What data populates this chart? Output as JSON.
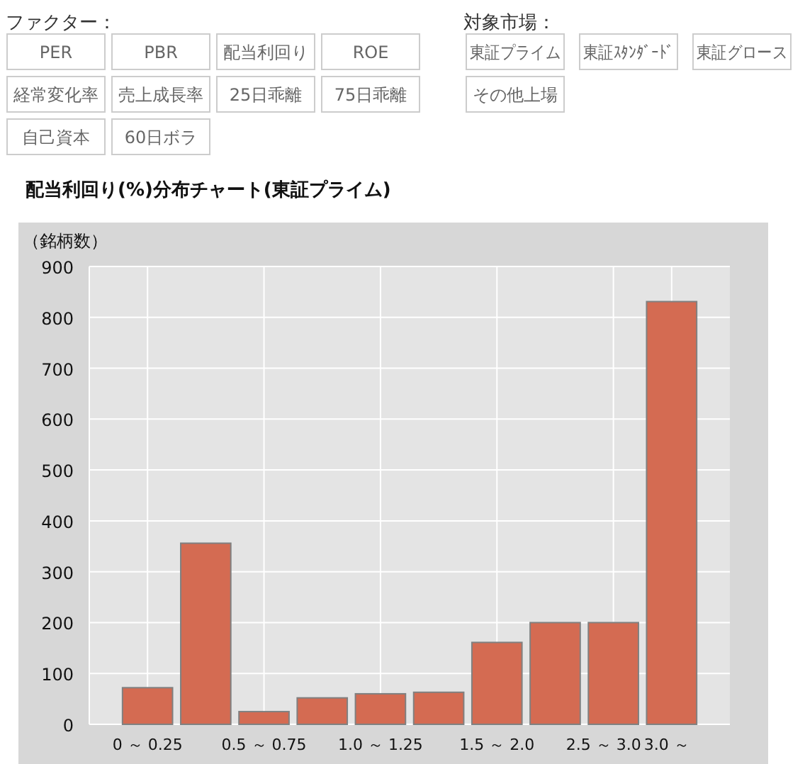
{
  "chart_data": {
    "type": "bar",
    "title": "配当利回り(%)分布チャート(東証プライム)",
    "ylabel": "（銘柄数）",
    "categories": [
      "0 ～ 0.25",
      null,
      "0.5 ～ 0.75",
      null,
      "1.0 ～ 1.25",
      null,
      "1.5 ～ 2.0",
      null,
      "2.5 ～ 3.0",
      "3.0 ～"
    ],
    "values": [
      72,
      356,
      25,
      52,
      60,
      63,
      161,
      200,
      200,
      831
    ],
    "color": "#d46b52",
    "ylim": [
      0,
      900
    ],
    "yticks": [
      0,
      100,
      200,
      300,
      400,
      500,
      600,
      700,
      800,
      900
    ],
    "grid": true,
    "annotations": [
      "ファクター：",
      "PER",
      "PBR",
      "配当利回り",
      "ROE",
      "経常変化率",
      "売上成長率",
      "25日乖離",
      "75日乖離",
      "自己資本",
      "60日ボラ",
      "対象市場：",
      "東証プライム",
      "東証ｽﾀﾝﾀﾞｰﾄﾞ",
      "東証グロース",
      "その他上場"
    ]
  }
}
